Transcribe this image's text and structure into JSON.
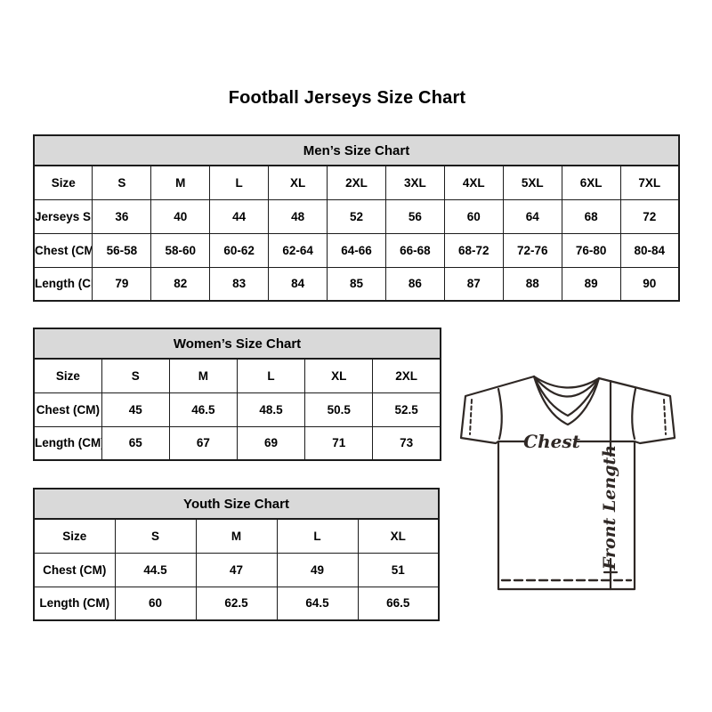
{
  "page": {
    "title": "Football Jerseys Size Chart"
  },
  "tables": {
    "mens": {
      "title": "Men’s Size Chart",
      "rows": [
        [
          "Size",
          "S",
          "M",
          "L",
          "XL",
          "2XL",
          "3XL",
          "4XL",
          "5XL",
          "6XL",
          "7XL"
        ],
        [
          "Jerseys Size",
          "36",
          "40",
          "44",
          "48",
          "52",
          "56",
          "60",
          "64",
          "68",
          "72"
        ],
        [
          "Chest (CM)",
          "56-58",
          "58-60",
          "60-62",
          "62-64",
          "64-66",
          "66-68",
          "68-72",
          "72-76",
          "76-80",
          "80-84"
        ],
        [
          "Length (CM)",
          "79",
          "82",
          "83",
          "84",
          "85",
          "86",
          "87",
          "88",
          "89",
          "90"
        ]
      ]
    },
    "womens": {
      "title": "Women’s Size Chart",
      "rows": [
        [
          "Size",
          "S",
          "M",
          "L",
          "XL",
          "2XL"
        ],
        [
          "Chest (CM)",
          "45",
          "46.5",
          "48.5",
          "50.5",
          "52.5"
        ],
        [
          "Length (CM)",
          "65",
          "67",
          "69",
          "71",
          "73"
        ]
      ]
    },
    "youth": {
      "title": "Youth Size Chart",
      "rows": [
        [
          "Size",
          "S",
          "M",
          "L",
          "XL"
        ],
        [
          "Chest (CM)",
          "44.5",
          "47",
          "49",
          "51"
        ],
        [
          "Length (CM)",
          "60",
          "62.5",
          "64.5",
          "66.5"
        ]
      ]
    }
  },
  "diagram": {
    "chest_label": "Chest",
    "front_length_label": "Front Length"
  },
  "colors": {
    "header_bg": "#d9d9d9",
    "table_border": "#1c1c1c",
    "diagram_line": "#2f2825"
  }
}
